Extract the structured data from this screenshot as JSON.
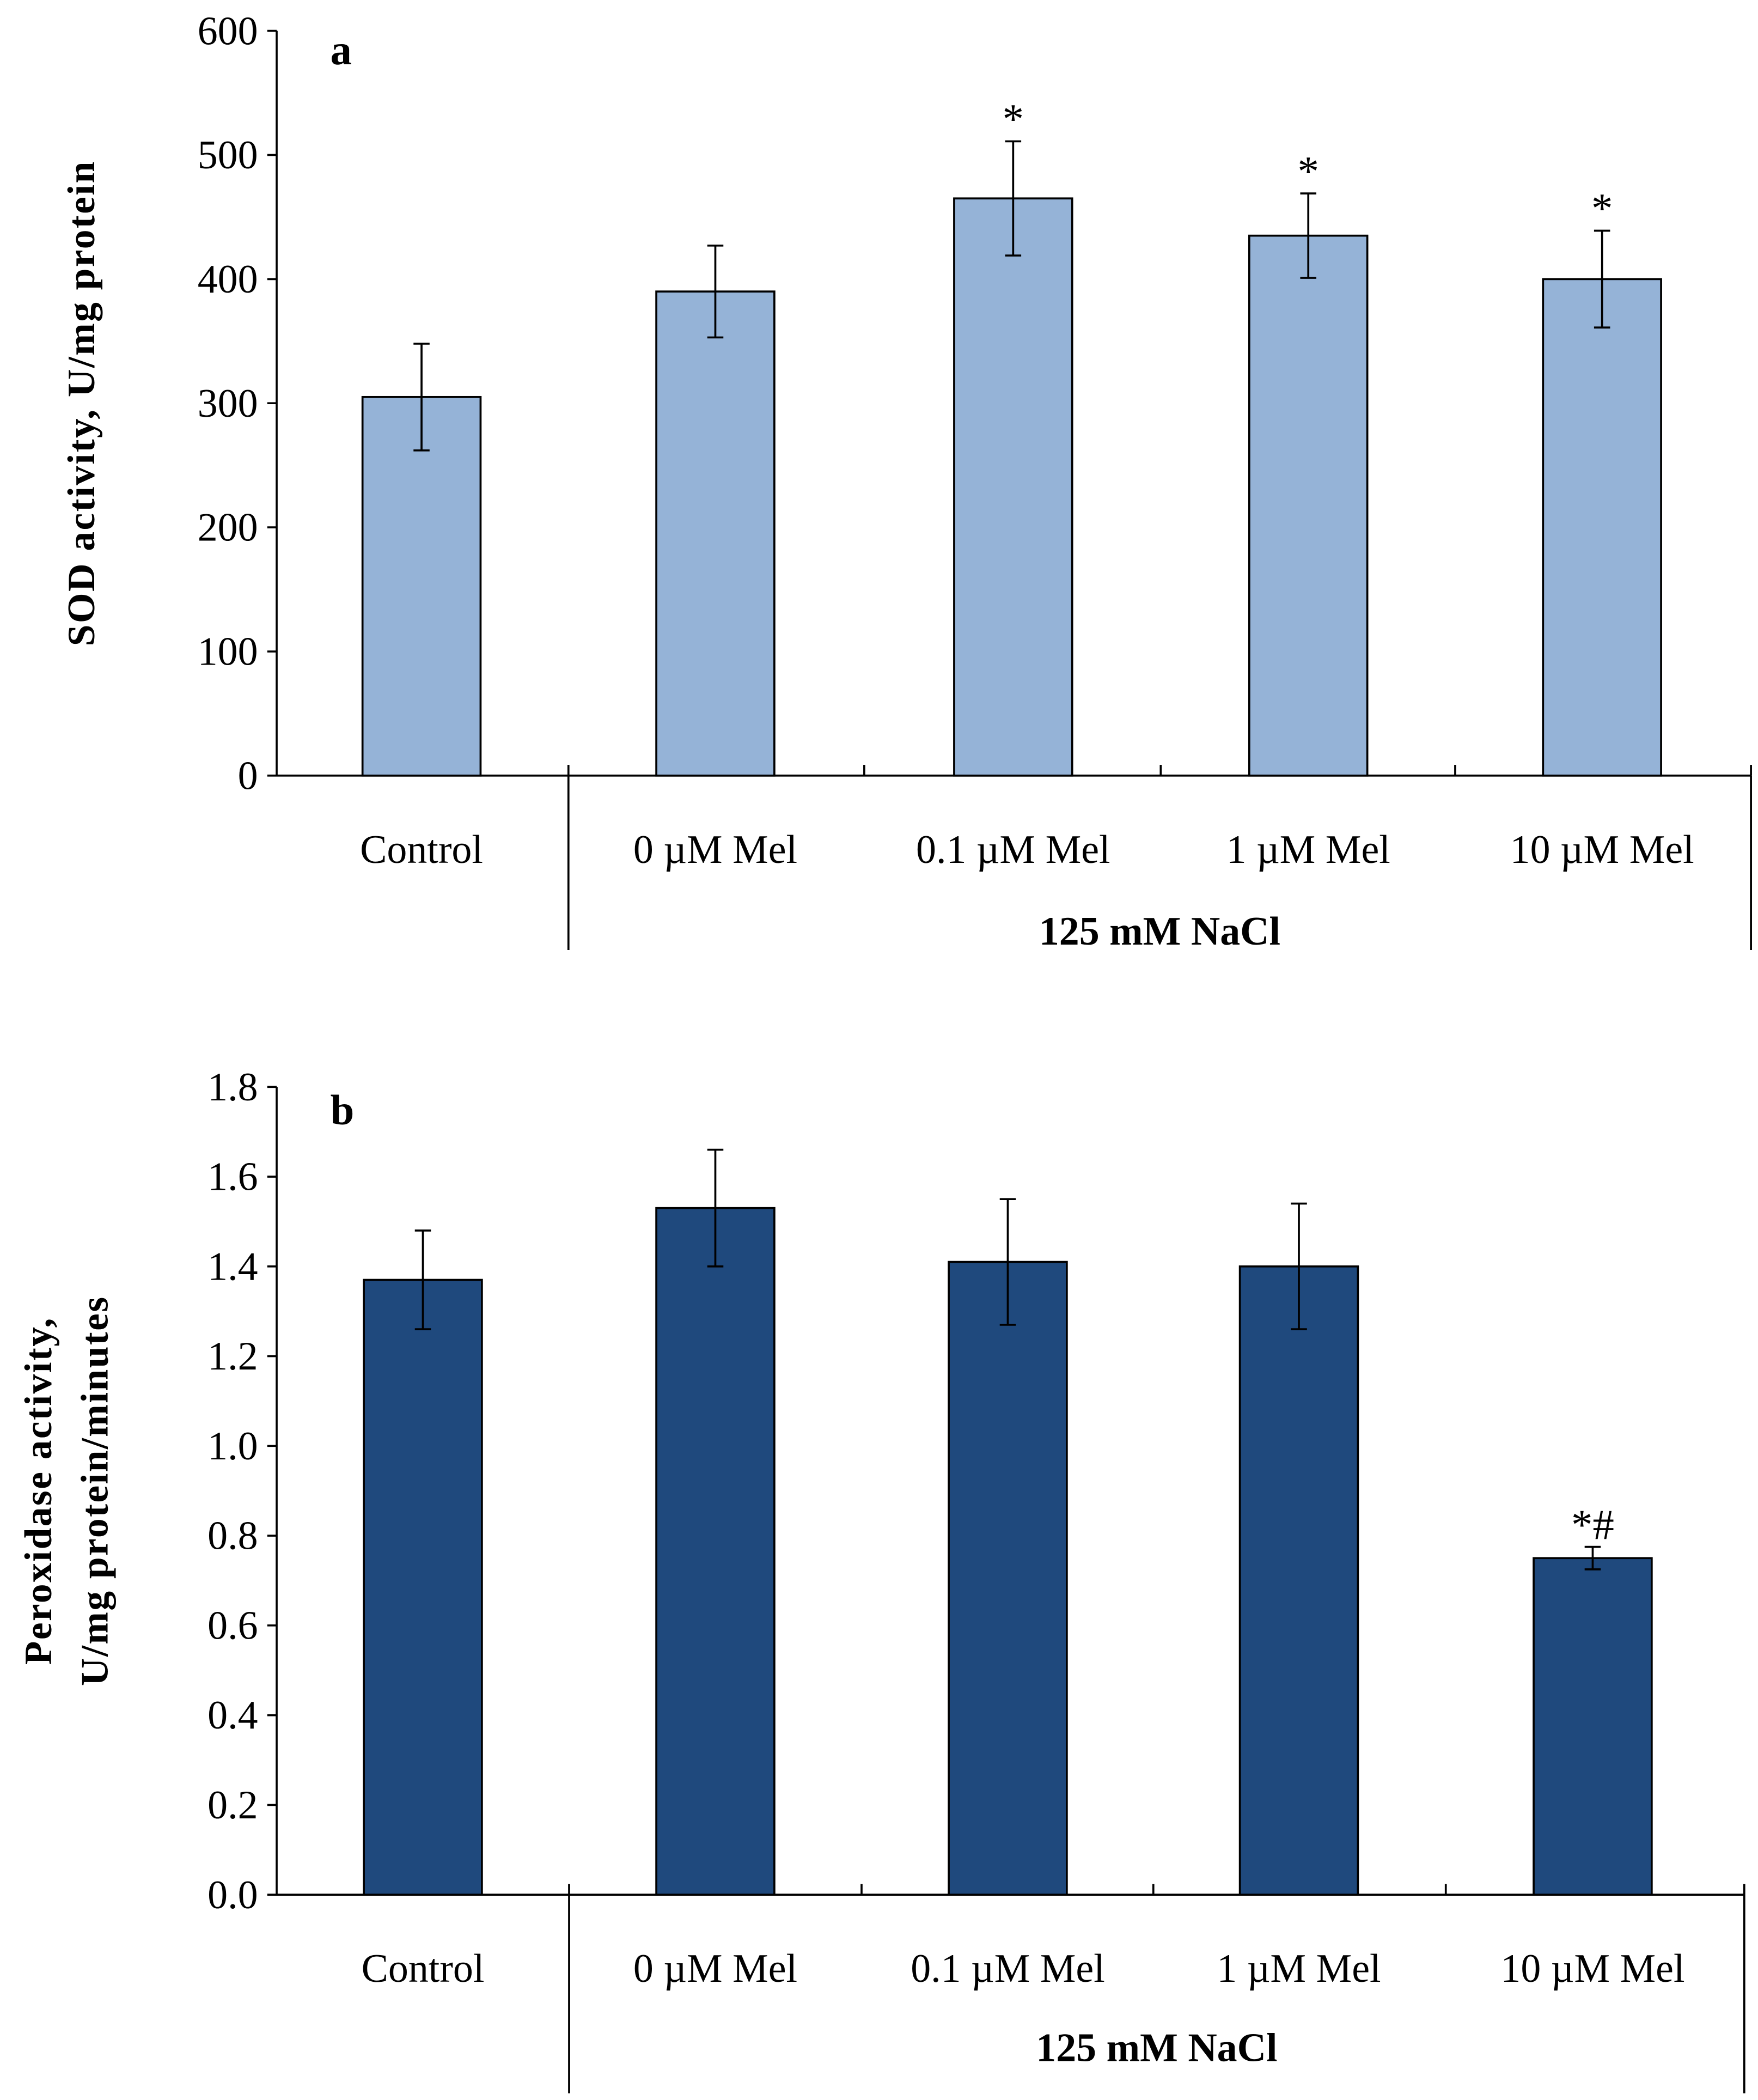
{
  "chart_data": [
    {
      "type": "bar",
      "panel": "a",
      "title": "",
      "ylabel": "SOD activity, U/mg protein",
      "xlabel": "",
      "group_label": "125 mM NaCl",
      "categories": [
        "Control",
        "0 µM Mel",
        "0.1 µM Mel",
        "1 µM Mel",
        "10 µM Mel"
      ],
      "values": [
        305,
        390,
        465,
        435,
        400
      ],
      "errors": [
        43,
        37,
        46,
        34,
        39
      ],
      "annotations": [
        "",
        "",
        "*",
        "*",
        "*"
      ],
      "ylim": [
        0,
        600
      ],
      "yticks": [
        "0",
        "100",
        "200",
        "300",
        "400",
        "500",
        "600"
      ],
      "color": "#95B3D7",
      "grid": false
    },
    {
      "type": "bar",
      "panel": "b",
      "title": "",
      "ylabel": [
        "Peroxidase activity,",
        "U/mg protein/minutes"
      ],
      "xlabel": "",
      "group_label": "125 mM NaCl",
      "categories": [
        "Control",
        "0 µM Mel",
        "0.1 µM Mel",
        "1 µM Mel",
        "10 µM Mel"
      ],
      "values": [
        1.37,
        1.53,
        1.41,
        1.4,
        0.75
      ],
      "errors": [
        0.11,
        0.13,
        0.14,
        0.14,
        0.025
      ],
      "annotations": [
        "",
        "",
        "",
        "",
        "*#"
      ],
      "ylim": [
        0,
        1.8
      ],
      "yticks": [
        "0.0",
        "0.2",
        "0.4",
        "0.6",
        "0.8",
        "1.0",
        "1.2",
        "1.4",
        "1.6",
        "1.8"
      ],
      "color": "#1F497D",
      "grid": false
    }
  ]
}
